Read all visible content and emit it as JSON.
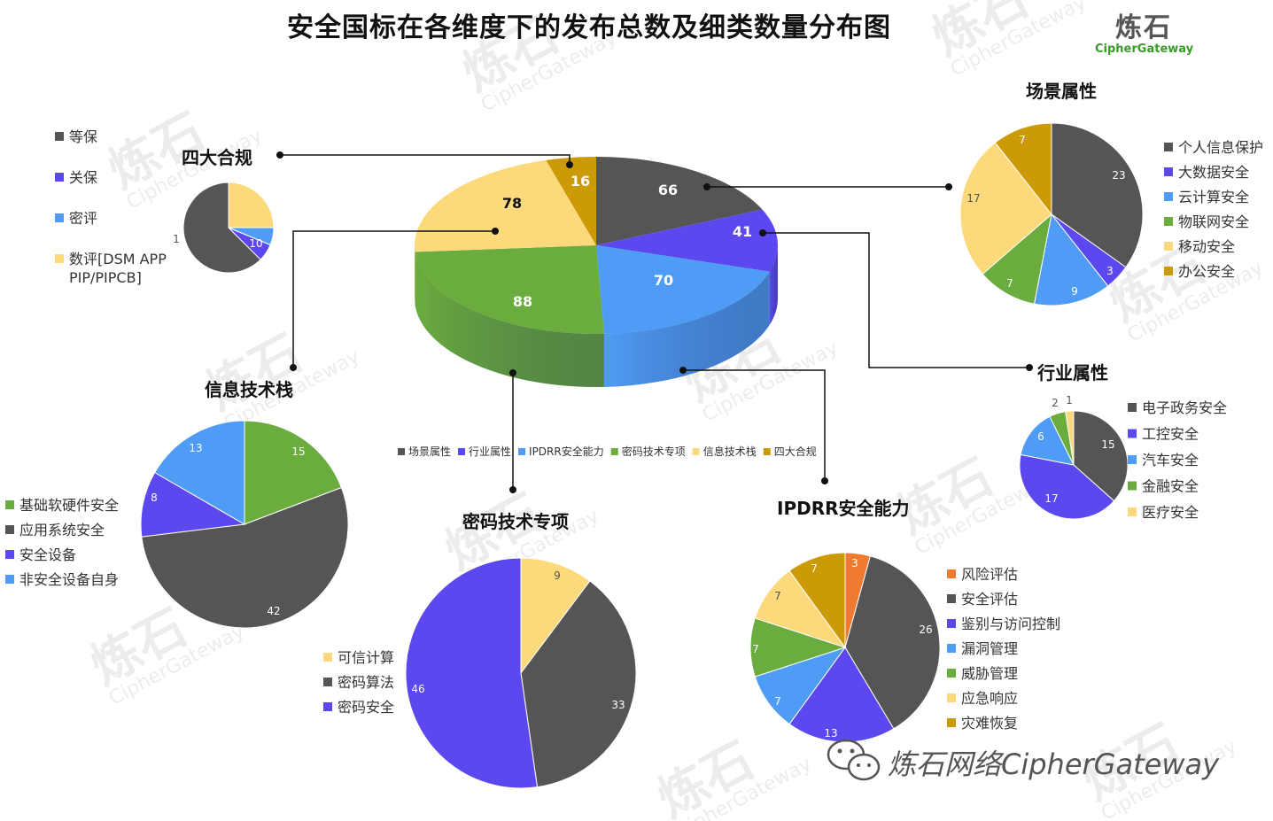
{
  "title": "安全国标在各维度下的发布总数及细类数量分布图",
  "logo": {
    "cn": "炼石",
    "en": "CipherGateway"
  },
  "watermark_brand": "炼石网络CipherGateway",
  "chart_data": [
    {
      "id": "main",
      "type": "pie",
      "style": "3d",
      "categories": [
        "场景属性",
        "行业属性",
        "IPDRR安全能力",
        "密码技术专项",
        "信息技术栈",
        "四大合规"
      ],
      "values": [
        66,
        41,
        70,
        88,
        78,
        16
      ],
      "colors": [
        "#555555",
        "#5b48ee",
        "#4f9cf6",
        "#6aac3e",
        "#fcd97b",
        "#cc9a06"
      ],
      "legend": "bottom"
    },
    {
      "id": "compliance",
      "type": "pie",
      "title": "四大合规",
      "categories": [
        "等保",
        "关保",
        "密评",
        "数评[DSM APP PIP/PIPCB]"
      ],
      "values": [
        10,
        1,
        1,
        4
      ],
      "colors": [
        "#555555",
        "#5b48ee",
        "#4f9cf6",
        "#fcd97b"
      ],
      "legend": "left"
    },
    {
      "id": "scene",
      "type": "pie",
      "title": "场景属性",
      "categories": [
        "个人信息保护",
        "大数据安全",
        "云计算安全",
        "物联网安全",
        "移动安全",
        "办公安全"
      ],
      "values": [
        23,
        3,
        9,
        7,
        17,
        7
      ],
      "colors": [
        "#555555",
        "#5b48ee",
        "#4f9cf6",
        "#6aac3e",
        "#fcd97b",
        "#cc9a06"
      ],
      "legend": "right"
    },
    {
      "id": "industry",
      "type": "pie",
      "title": "行业属性",
      "categories": [
        "电子政务安全",
        "工控安全",
        "汽车安全",
        "金融安全",
        "医疗安全"
      ],
      "values": [
        15,
        17,
        6,
        2,
        1
      ],
      "colors": [
        "#555555",
        "#5b48ee",
        "#4f9cf6",
        "#6aac3e",
        "#fcd97b"
      ],
      "legend": "right"
    },
    {
      "id": "itstack",
      "type": "pie",
      "title": "信息技术栈",
      "categories": [
        "基础软硬件安全",
        "应用系统安全",
        "安全设备",
        "非安全设备自身"
      ],
      "values": [
        15,
        42,
        8,
        13
      ],
      "colors": [
        "#6aac3e",
        "#555555",
        "#5b48ee",
        "#4f9cf6"
      ],
      "legend": "left"
    },
    {
      "id": "crypto",
      "type": "pie",
      "title": "密码技术专项",
      "categories": [
        "可信计算",
        "密码算法",
        "密码安全"
      ],
      "values": [
        9,
        33,
        46
      ],
      "colors": [
        "#fcd97b",
        "#555555",
        "#5b48ee"
      ],
      "legend": "left"
    },
    {
      "id": "ipdrr",
      "type": "pie",
      "title": "IPDRR安全能力",
      "categories": [
        "风险评估",
        "安全评估",
        "鉴别与访问控制",
        "漏洞管理",
        "威胁管理",
        "应急响应",
        "灾难恢复"
      ],
      "values": [
        3,
        26,
        13,
        7,
        7,
        7,
        7
      ],
      "colors": [
        "#ee7b30",
        "#555555",
        "#5b48ee",
        "#4f9cf6",
        "#6aac3e",
        "#fcd97b",
        "#cc9a06"
      ],
      "legend": "right"
    }
  ]
}
